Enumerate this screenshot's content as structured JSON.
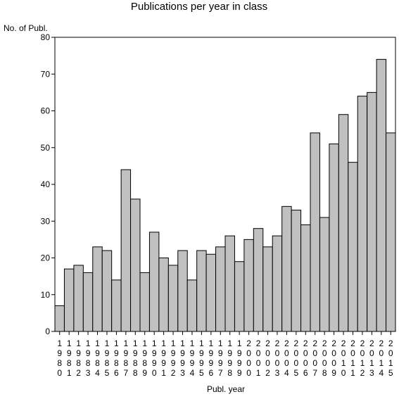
{
  "chart_data": {
    "type": "bar",
    "title": "Publications per year in class",
    "ylabel": "No. of Publ.",
    "xlabel": "Publ. year",
    "ylim": [
      0,
      80
    ],
    "yticks": [
      0,
      10,
      20,
      30,
      40,
      50,
      60,
      70,
      80
    ],
    "bar_color": "#c0c0c0",
    "categories": [
      "1980",
      "1981",
      "1982",
      "1983",
      "1984",
      "1985",
      "1986",
      "1987",
      "1988",
      "1989",
      "1990",
      "1991",
      "1992",
      "1993",
      "1994",
      "1995",
      "1996",
      "1997",
      "1998",
      "1999",
      "2000",
      "2001",
      "2002",
      "2003",
      "2004",
      "2005",
      "2006",
      "2007",
      "2008",
      "2009",
      "2010",
      "2011",
      "2012",
      "2013",
      "2014",
      "2015"
    ],
    "values": [
      7,
      17,
      18,
      16,
      23,
      22,
      14,
      44,
      36,
      16,
      27,
      20,
      18,
      22,
      14,
      22,
      21,
      23,
      26,
      19,
      25,
      28,
      23,
      26,
      34,
      33,
      29,
      54,
      31,
      51,
      59,
      46,
      64,
      65,
      74,
      54
    ]
  }
}
